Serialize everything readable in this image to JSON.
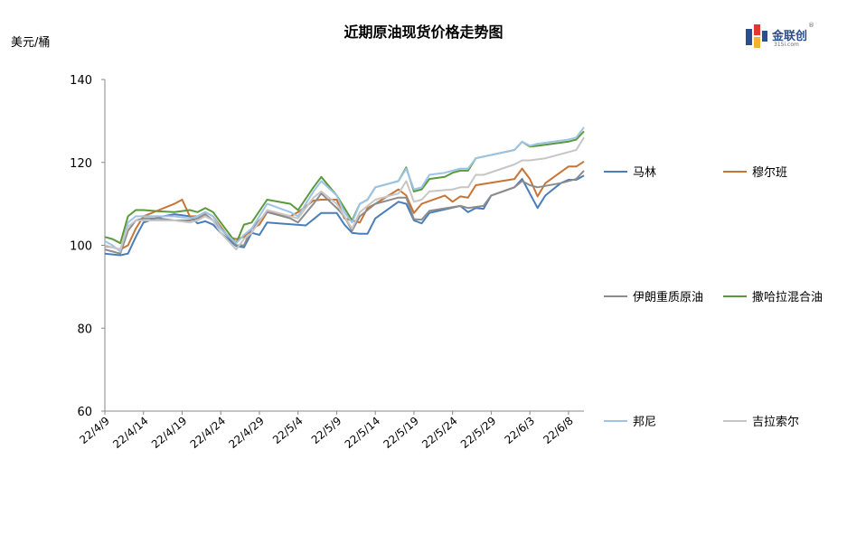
{
  "chart_data": {
    "type": "line",
    "title": "近期原油现货价格走势图",
    "ylabel": "美元/桶",
    "ylim": [
      60,
      140
    ],
    "yticks": [
      60,
      80,
      100,
      120,
      140
    ],
    "xtick_labels": [
      "22/4/9",
      "22/4/14",
      "22/4/19",
      "22/4/24",
      "22/4/29",
      "22/5/4",
      "22/5/9",
      "22/5/14",
      "22/5/19",
      "22/5/24",
      "22/5/29",
      "22/6/3",
      "22/6/8"
    ],
    "grid": false,
    "legend_position": "right",
    "x_start": "22/4/9",
    "x_end": "22/6/8",
    "series": [
      {
        "name": "马林",
        "color": "#4a7ebb",
        "points": [
          [
            "22/4/9",
            98.0
          ],
          [
            "22/4/10",
            97.8
          ],
          [
            "22/4/11",
            97.6
          ],
          [
            "22/4/12",
            98.0
          ],
          [
            "22/4/13",
            102.0
          ],
          [
            "22/4/14",
            105.5
          ],
          [
            "22/4/16",
            106.8
          ],
          [
            "22/4/18",
            107.5
          ],
          [
            "22/4/20",
            107.0
          ],
          [
            "22/4/21",
            105.3
          ],
          [
            "22/4/22",
            105.8
          ],
          [
            "22/4/23",
            105.0
          ],
          [
            "22/4/24",
            103.0
          ],
          [
            "22/4/26",
            99.8
          ],
          [
            "22/4/27",
            99.5
          ],
          [
            "22/4/28",
            103.0
          ],
          [
            "22/4/29",
            102.5
          ],
          [
            "22/4/30",
            105.5
          ],
          [
            "22/5/5",
            104.8
          ],
          [
            "22/5/7",
            107.8
          ],
          [
            "22/5/9",
            107.8
          ],
          [
            "22/5/10",
            105.0
          ],
          [
            "22/5/11",
            103.0
          ],
          [
            "22/5/12",
            102.8
          ],
          [
            "22/5/13",
            102.8
          ],
          [
            "22/5/14",
            106.5
          ],
          [
            "22/5/17",
            110.5
          ],
          [
            "22/5/18",
            110.0
          ],
          [
            "22/5/19",
            106.0
          ],
          [
            "22/5/20",
            105.3
          ],
          [
            "22/5/21",
            107.8
          ],
          [
            "22/5/25",
            109.5
          ],
          [
            "22/5/26",
            108.0
          ],
          [
            "22/5/27",
            109.0
          ],
          [
            "22/5/28",
            108.8
          ],
          [
            "22/5/29",
            112.0
          ],
          [
            "22/6/1",
            114.0
          ],
          [
            "22/6/2",
            116.0
          ],
          [
            "22/6/4",
            109.0
          ],
          [
            "22/6/5",
            112.0
          ],
          [
            "22/6/7",
            115.0
          ],
          [
            "22/6/8",
            115.8
          ],
          [
            "22/6/9",
            115.8
          ],
          [
            "22/6/10",
            116.8
          ]
        ]
      },
      {
        "name": "穆尔班",
        "color": "#c87436",
        "points": [
          [
            "22/4/9",
            99.8
          ],
          [
            "22/4/10",
            99.5
          ],
          [
            "22/4/11",
            99.0
          ],
          [
            "22/4/12",
            100.0
          ],
          [
            "22/4/13",
            104.0
          ],
          [
            "22/4/14",
            107.0
          ],
          [
            "22/4/16",
            108.5
          ],
          [
            "22/4/18",
            110.0
          ],
          [
            "22/4/19",
            111.0
          ],
          [
            "22/4/20",
            107.0
          ],
          [
            "22/4/21",
            107.0
          ],
          [
            "22/4/22",
            108.0
          ],
          [
            "22/4/23",
            107.0
          ],
          [
            "22/4/24",
            104.5
          ],
          [
            "22/4/25",
            102.0
          ],
          [
            "22/4/26",
            101.5
          ],
          [
            "22/4/27",
            102.0
          ],
          [
            "22/4/28",
            104.0
          ],
          [
            "22/4/29",
            105.0
          ],
          [
            "22/4/30",
            108.0
          ],
          [
            "22/5/3",
            107.0
          ],
          [
            "22/5/4",
            108.0
          ],
          [
            "22/5/6",
            110.8
          ],
          [
            "22/5/7",
            111.0
          ],
          [
            "22/5/9",
            111.0
          ],
          [
            "22/5/10",
            106.5
          ],
          [
            "22/5/11",
            106.0
          ],
          [
            "22/5/12",
            105.5
          ],
          [
            "22/5/13",
            109.0
          ],
          [
            "22/5/14",
            110.0
          ],
          [
            "22/5/17",
            113.5
          ],
          [
            "22/5/18",
            112.0
          ],
          [
            "22/5/19",
            107.8
          ],
          [
            "22/5/20",
            110.0
          ],
          [
            "22/5/23",
            112.0
          ],
          [
            "22/5/24",
            110.5
          ],
          [
            "22/5/25",
            111.8
          ],
          [
            "22/5/26",
            111.5
          ],
          [
            "22/5/27",
            114.5
          ],
          [
            "22/6/1",
            116.0
          ],
          [
            "22/6/2",
            118.5
          ],
          [
            "22/6/3",
            116.0
          ],
          [
            "22/6/4",
            111.8
          ],
          [
            "22/6/5",
            115.0
          ],
          [
            "22/6/8",
            119.0
          ],
          [
            "22/6/9",
            119.0
          ],
          [
            "22/6/10",
            120.2
          ]
        ]
      },
      {
        "name": "伊朗重质原油",
        "color": "#8c8c8c",
        "points": [
          [
            "22/4/9",
            99.0
          ],
          [
            "22/4/10",
            98.5
          ],
          [
            "22/4/11",
            98.0
          ],
          [
            "22/4/12",
            103.5
          ],
          [
            "22/4/13",
            106.0
          ],
          [
            "22/4/14",
            106.5
          ],
          [
            "22/4/16",
            106.5
          ],
          [
            "22/4/18",
            106.0
          ],
          [
            "22/4/20",
            106.0
          ],
          [
            "22/4/21",
            106.5
          ],
          [
            "22/4/22",
            107.5
          ],
          [
            "22/4/23",
            106.0
          ],
          [
            "22/4/24",
            104.0
          ],
          [
            "22/4/26",
            100.0
          ],
          [
            "22/4/27",
            100.0
          ],
          [
            "22/4/28",
            104.0
          ],
          [
            "22/4/30",
            108.0
          ],
          [
            "22/5/3",
            106.5
          ],
          [
            "22/5/4",
            105.5
          ],
          [
            "22/5/6",
            110.0
          ],
          [
            "22/5/7",
            112.5
          ],
          [
            "22/5/9",
            109.0
          ],
          [
            "22/5/10",
            107.0
          ],
          [
            "22/5/11",
            103.5
          ],
          [
            "22/5/12",
            107.0
          ],
          [
            "22/5/13",
            108.5
          ],
          [
            "22/5/14",
            110.0
          ],
          [
            "22/5/17",
            111.5
          ],
          [
            "22/5/18",
            111.5
          ],
          [
            "22/5/19",
            106.3
          ],
          [
            "22/5/20",
            106.2
          ],
          [
            "22/5/21",
            108.3
          ],
          [
            "22/5/25",
            109.5
          ],
          [
            "22/5/26",
            109.0
          ],
          [
            "22/5/28",
            109.5
          ],
          [
            "22/5/29",
            112.0
          ],
          [
            "22/6/1",
            114.0
          ],
          [
            "22/6/2",
            115.5
          ],
          [
            "22/6/3",
            114.5
          ],
          [
            "22/6/4",
            114.0
          ],
          [
            "22/6/7",
            115.0
          ],
          [
            "22/6/9",
            116.0
          ],
          [
            "22/6/10",
            118.0
          ]
        ]
      },
      {
        "name": "撒哈拉混合油",
        "color": "#5b9a3c",
        "points": [
          [
            "22/4/9",
            102.0
          ],
          [
            "22/4/10",
            101.5
          ],
          [
            "22/4/11",
            100.5
          ],
          [
            "22/4/12",
            107.0
          ],
          [
            "22/4/13",
            108.5
          ],
          [
            "22/4/14",
            108.5
          ],
          [
            "22/4/16",
            108.2
          ],
          [
            "22/4/18",
            108.0
          ],
          [
            "22/4/20",
            108.5
          ],
          [
            "22/4/21",
            108.0
          ],
          [
            "22/4/22",
            109.0
          ],
          [
            "22/4/23",
            108.0
          ],
          [
            "22/4/24",
            105.5
          ],
          [
            "22/4/26",
            100.5
          ],
          [
            "22/4/27",
            105.0
          ],
          [
            "22/4/28",
            105.5
          ],
          [
            "22/4/30",
            111.0
          ],
          [
            "22/5/3",
            110.0
          ],
          [
            "22/5/4",
            108.5
          ],
          [
            "22/5/6",
            114.0
          ],
          [
            "22/5/7",
            116.5
          ],
          [
            "22/5/9",
            112.0
          ],
          [
            "22/5/10",
            109.0
          ],
          [
            "22/5/11",
            106.0
          ],
          [
            "22/5/12",
            110.0
          ],
          [
            "22/5/13",
            111.0
          ],
          [
            "22/5/14",
            114.0
          ],
          [
            "22/5/16",
            115.0
          ],
          [
            "22/5/17",
            115.5
          ],
          [
            "22/5/18",
            118.8
          ],
          [
            "22/5/19",
            113.0
          ],
          [
            "22/5/20",
            113.5
          ],
          [
            "22/5/21",
            116.0
          ],
          [
            "22/5/23",
            116.5
          ],
          [
            "22/5/24",
            117.5
          ],
          [
            "22/5/25",
            118.0
          ],
          [
            "22/5/26",
            118.0
          ],
          [
            "22/5/27",
            121.0
          ],
          [
            "22/6/1",
            123.0
          ],
          [
            "22/6/2",
            125.0
          ],
          [
            "22/6/3",
            123.8
          ],
          [
            "22/6/4",
            124.0
          ],
          [
            "22/6/8",
            125.0
          ],
          [
            "22/6/9",
            125.5
          ],
          [
            "22/6/10",
            127.5
          ]
        ]
      },
      {
        "name": "邦尼",
        "color": "#9dc3e6",
        "points": [
          [
            "22/4/9",
            101.0
          ],
          [
            "22/4/10",
            100.0
          ],
          [
            "22/4/11",
            98.5
          ],
          [
            "22/4/12",
            105.5
          ],
          [
            "22/4/13",
            107.0
          ],
          [
            "22/4/14",
            107.0
          ],
          [
            "22/4/16",
            107.0
          ],
          [
            "22/4/18",
            107.0
          ],
          [
            "22/4/20",
            106.5
          ],
          [
            "22/4/21",
            107.0
          ],
          [
            "22/4/22",
            108.0
          ],
          [
            "22/4/23",
            107.0
          ],
          [
            "22/4/24",
            104.0
          ],
          [
            "22/4/26",
            100.5
          ],
          [
            "22/4/27",
            102.5
          ],
          [
            "22/4/28",
            104.0
          ],
          [
            "22/4/30",
            110.0
          ],
          [
            "22/5/3",
            108.0
          ],
          [
            "22/5/4",
            107.0
          ],
          [
            "22/5/6",
            113.0
          ],
          [
            "22/5/7",
            115.5
          ],
          [
            "22/5/9",
            112.0
          ],
          [
            "22/5/10",
            108.0
          ],
          [
            "22/5/11",
            105.5
          ],
          [
            "22/5/12",
            110.0
          ],
          [
            "22/5/13",
            111.0
          ],
          [
            "22/5/14",
            114.0
          ],
          [
            "22/5/16",
            115.0
          ],
          [
            "22/5/17",
            115.5
          ],
          [
            "22/5/18",
            118.5
          ],
          [
            "22/5/19",
            113.5
          ],
          [
            "22/5/20",
            114.0
          ],
          [
            "22/5/21",
            117.0
          ],
          [
            "22/5/23",
            117.5
          ],
          [
            "22/5/24",
            118.0
          ],
          [
            "22/5/25",
            118.5
          ],
          [
            "22/5/26",
            118.5
          ],
          [
            "22/5/27",
            121.0
          ],
          [
            "22/6/1",
            123.0
          ],
          [
            "22/6/2",
            125.0
          ],
          [
            "22/6/3",
            124.0
          ],
          [
            "22/6/4",
            124.5
          ],
          [
            "22/6/8",
            125.5
          ],
          [
            "22/6/9",
            126.0
          ],
          [
            "22/6/10",
            128.5
          ]
        ]
      },
      {
        "name": "吉拉索尔",
        "color": "#c6c6c6",
        "points": [
          [
            "22/4/9",
            100.0
          ],
          [
            "22/4/10",
            99.5
          ],
          [
            "22/4/11",
            99.0
          ],
          [
            "22/4/12",
            104.5
          ],
          [
            "22/4/13",
            106.0
          ],
          [
            "22/4/14",
            106.0
          ],
          [
            "22/4/16",
            106.0
          ],
          [
            "22/4/18",
            106.0
          ],
          [
            "22/4/20",
            105.5
          ],
          [
            "22/4/21",
            106.0
          ],
          [
            "22/4/22",
            107.0
          ],
          [
            "22/4/23",
            106.0
          ],
          [
            "22/4/24",
            103.0
          ],
          [
            "22/4/26",
            99.0
          ],
          [
            "22/4/27",
            101.5
          ],
          [
            "22/4/28",
            103.0
          ],
          [
            "22/4/30",
            108.5
          ],
          [
            "22/5/3",
            107.0
          ],
          [
            "22/5/4",
            106.5
          ],
          [
            "22/5/6",
            111.5
          ],
          [
            "22/5/7",
            113.0
          ],
          [
            "22/5/9",
            110.0
          ],
          [
            "22/5/10",
            107.0
          ],
          [
            "22/5/11",
            104.0
          ],
          [
            "22/5/12",
            108.0
          ],
          [
            "22/5/13",
            109.5
          ],
          [
            "22/5/14",
            111.0
          ],
          [
            "22/5/16",
            112.0
          ],
          [
            "22/5/17",
            112.5
          ],
          [
            "22/5/18",
            115.5
          ],
          [
            "22/5/19",
            110.5
          ],
          [
            "22/5/20",
            111.0
          ],
          [
            "22/5/21",
            113.0
          ],
          [
            "22/5/24",
            113.5
          ],
          [
            "22/5/25",
            114.0
          ],
          [
            "22/5/26",
            114.0
          ],
          [
            "22/5/27",
            117.0
          ],
          [
            "22/5/28",
            117.0
          ],
          [
            "22/6/1",
            119.5
          ],
          [
            "22/6/2",
            120.5
          ],
          [
            "22/6/3",
            120.5
          ],
          [
            "22/6/5",
            121.0
          ],
          [
            "22/6/8",
            122.5
          ],
          [
            "22/6/9",
            123.0
          ],
          [
            "22/6/10",
            126.0
          ]
        ]
      }
    ]
  },
  "logo": {
    "text": "金联创",
    "sub": "315i.com",
    "reg": "®"
  }
}
